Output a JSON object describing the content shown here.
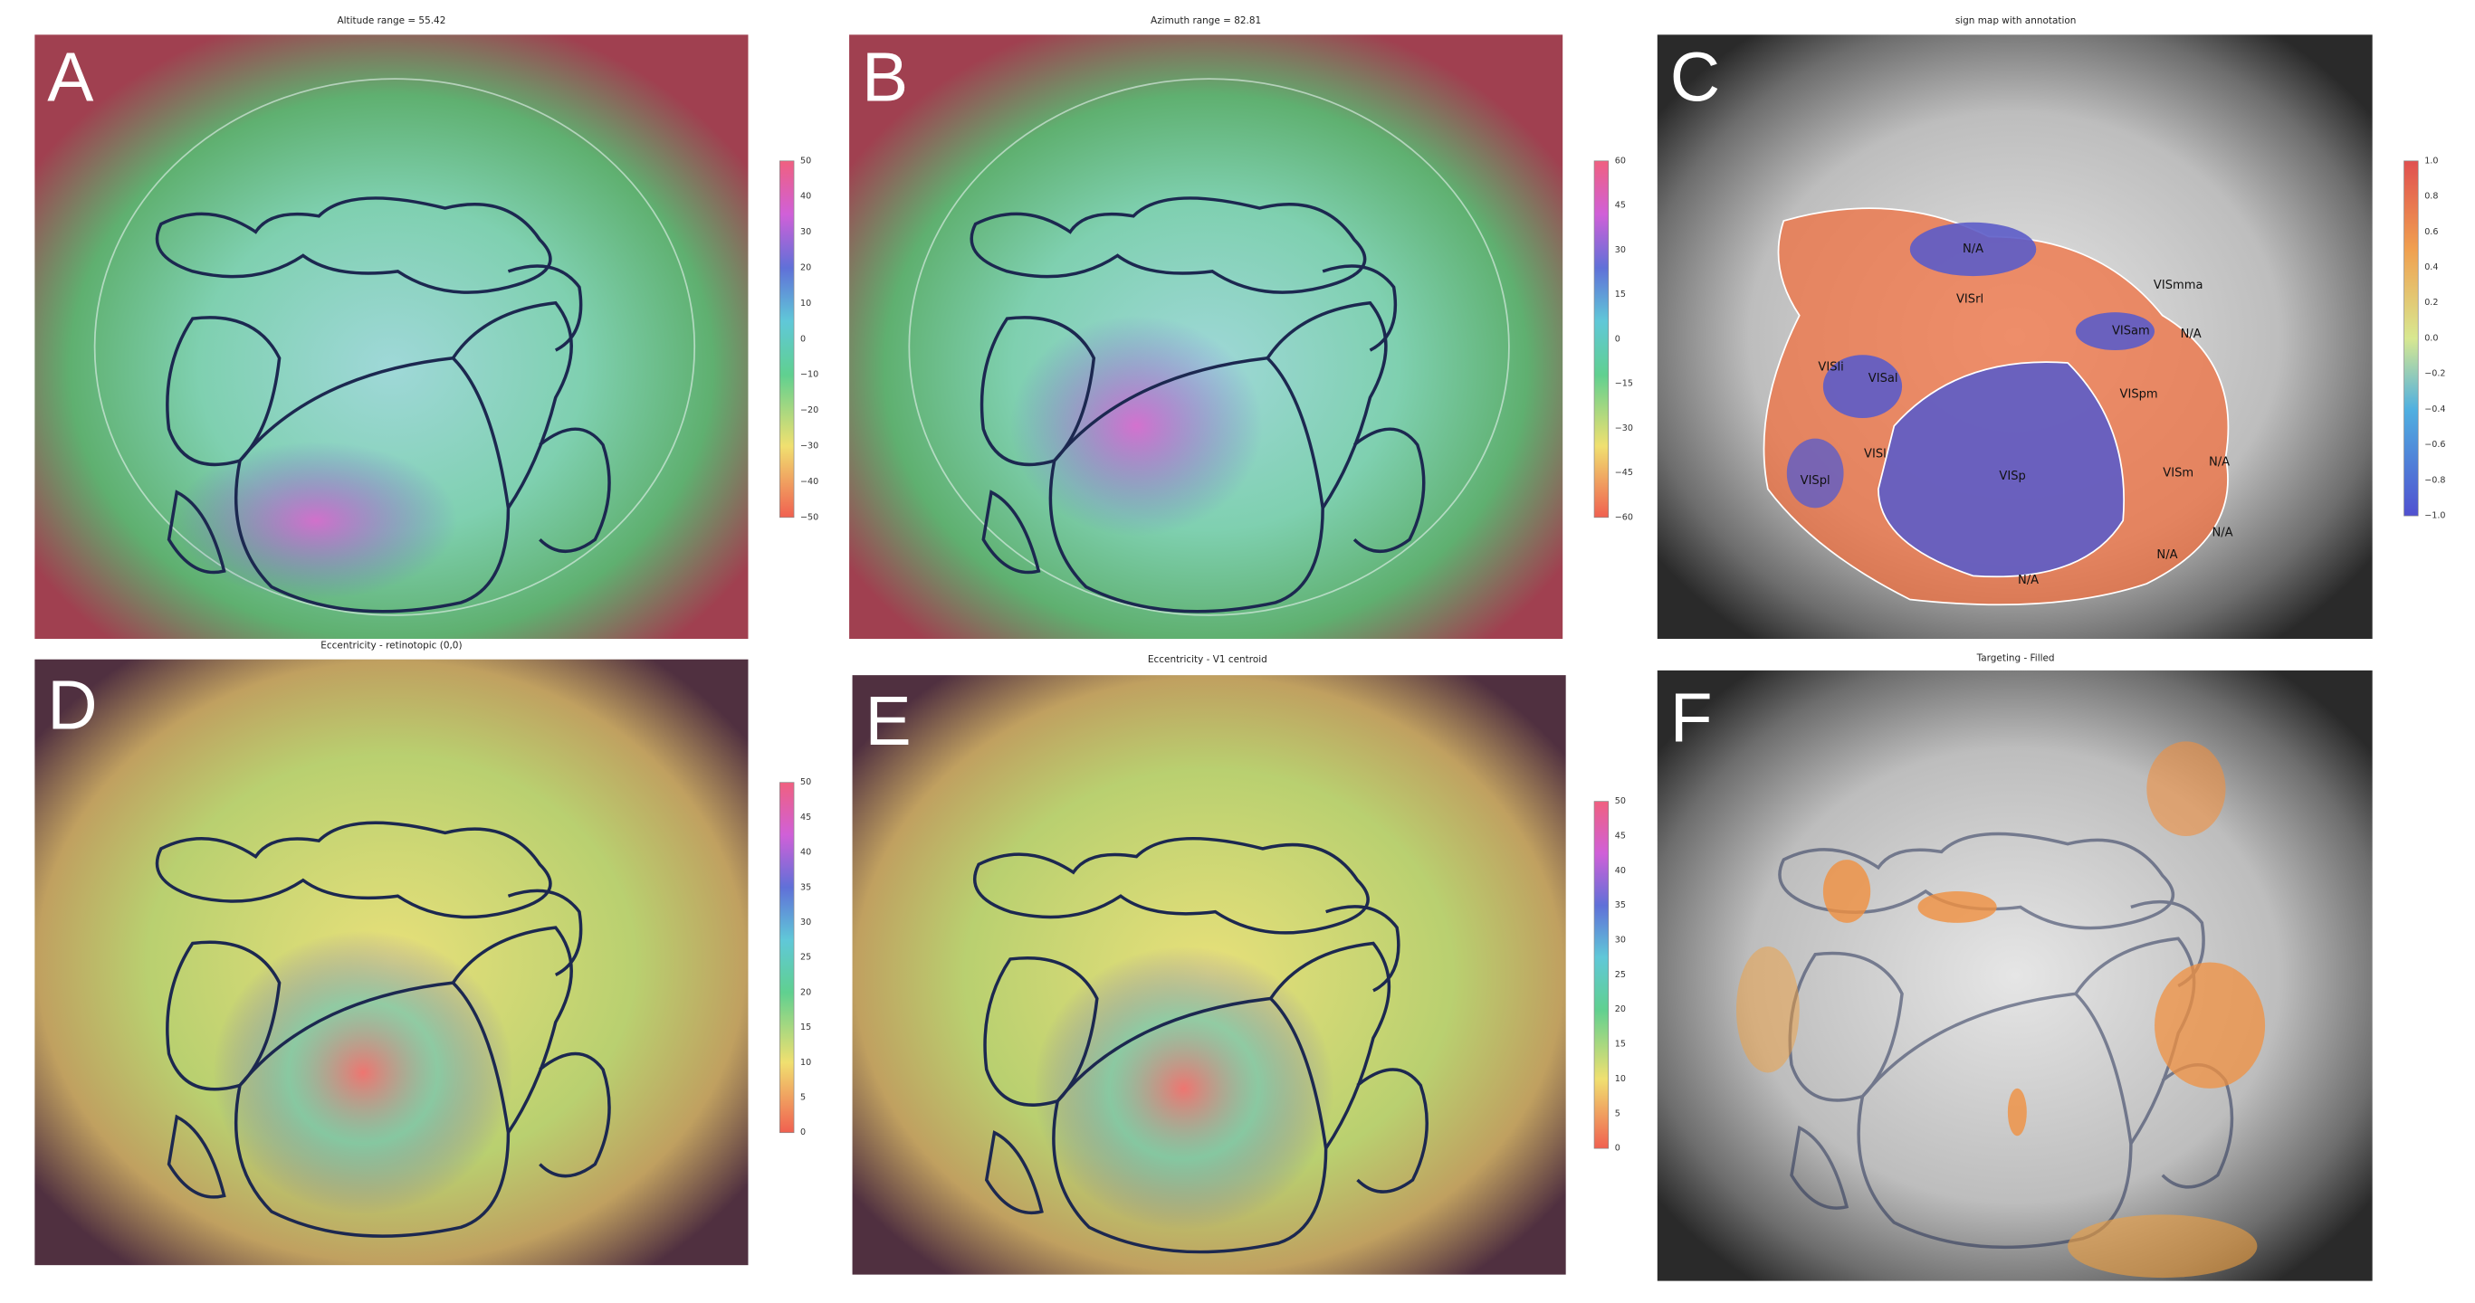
{
  "panels": [
    {
      "letter": "A",
      "title": "Altitude range = 55.42",
      "colorbar_ticks": [
        "50",
        "40",
        "30",
        "20",
        "10",
        "0",
        "−10",
        "−20",
        "−30",
        "−40",
        "−50"
      ]
    },
    {
      "letter": "B",
      "title": "Azimuth range = 82.81",
      "colorbar_ticks": [
        "60",
        "45",
        "30",
        "15",
        "0",
        "−15",
        "−30",
        "−45",
        "−60"
      ]
    },
    {
      "letter": "C",
      "title": "sign map with annotation",
      "colorbar_ticks": [
        "1.0",
        "0.8",
        "0.6",
        "0.4",
        "0.2",
        "0.0",
        "−0.2",
        "−0.4",
        "−0.6",
        "−0.8",
        "−1.0"
      ]
    },
    {
      "letter": "D",
      "title": "Eccentricity - retinotopic (0,0)",
      "colorbar_ticks": [
        "50",
        "45",
        "40",
        "35",
        "30",
        "25",
        "20",
        "15",
        "10",
        "5",
        "0"
      ]
    },
    {
      "letter": "E",
      "title": "Eccentricity - V1 centroid",
      "colorbar_ticks": [
        "50",
        "45",
        "40",
        "35",
        "30",
        "25",
        "20",
        "15",
        "10",
        "5",
        "0"
      ]
    },
    {
      "letter": "F",
      "title": "Targeting - Filled"
    }
  ],
  "area_labels": [
    "N/A",
    "VISrl",
    "VISmma",
    "VISam",
    "N/A",
    "VISli",
    "VISal",
    "VISpm",
    "VISl",
    "VISp",
    "VISpl",
    "VISm",
    "N/A",
    "N/A",
    "N/A",
    "N/A"
  ]
}
